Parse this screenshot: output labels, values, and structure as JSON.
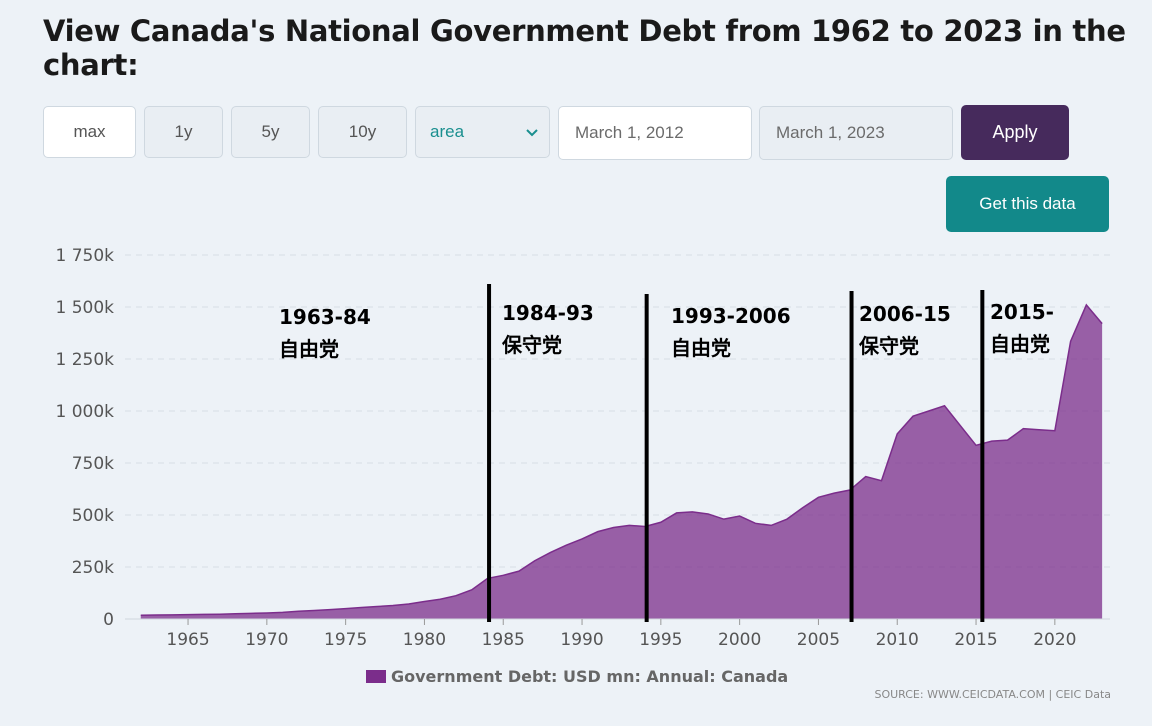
{
  "header": {
    "title": "View Canada's National Government Debt from 1962 to 2023 in the chart:"
  },
  "controls": {
    "range_buttons": [
      "max",
      "1y",
      "5y",
      "10y"
    ],
    "chart_type_select": "area",
    "start_date": "March 1, 2012",
    "end_date": "March 1, 2023",
    "apply_label": "Apply",
    "get_data_label": "Get this data"
  },
  "colors": {
    "series": "#7b2d8b",
    "apply": "#462a5c",
    "get_data": "#12898a"
  },
  "annotations": [
    {
      "line1": "1963-84",
      "line2": "自由党"
    },
    {
      "line1": "1984-93",
      "line2": "保守党"
    },
    {
      "line1": "1993-2006",
      "line2": "自由党"
    },
    {
      "line1": "2006-15",
      "line2": "保守党"
    },
    {
      "line1": "2015-",
      "line2": "自由党"
    }
  ],
  "divider_years": [
    1984.1,
    1994.1,
    2007.1,
    2015.4
  ],
  "legend": "Government Debt: USD mn: Annual: Canada",
  "source": "SOURCE: WWW.CEICDATA.COM | CEIC Data",
  "chart_data": {
    "type": "area",
    "xlabel": "",
    "ylabel": "",
    "ylim": [
      0,
      1750000
    ],
    "xlim": [
      1961,
      2023.5
    ],
    "yticks": [
      0,
      250000,
      500000,
      750000,
      1000000,
      1250000,
      1500000,
      1750000
    ],
    "ytick_labels": [
      "0",
      "250k",
      "500k",
      "750k",
      "1 000k",
      "1 250k",
      "1 500k",
      "1 750k"
    ],
    "xticks": [
      1965,
      1970,
      1975,
      1980,
      1985,
      1990,
      1995,
      2000,
      2005,
      2010,
      2015,
      2020
    ],
    "grid": true,
    "legend_position": "bottom",
    "series": [
      {
        "name": "Government Debt: USD mn: Annual: Canada",
        "x": [
          1962,
          1963,
          1964,
          1965,
          1966,
          1967,
          1968,
          1969,
          1970,
          1971,
          1972,
          1973,
          1974,
          1975,
          1976,
          1977,
          1978,
          1979,
          1980,
          1981,
          1982,
          1983,
          1984,
          1985,
          1986,
          1987,
          1988,
          1989,
          1990,
          1991,
          1992,
          1993,
          1994,
          1995,
          1996,
          1997,
          1998,
          1999,
          2000,
          2001,
          2002,
          2003,
          2004,
          2005,
          2006,
          2007,
          2008,
          2009,
          2010,
          2011,
          2012,
          2013,
          2014,
          2015,
          2016,
          2017,
          2018,
          2019,
          2020,
          2021,
          2022,
          2023
        ],
        "values": [
          18000,
          19000,
          20000,
          21000,
          22000,
          23000,
          25000,
          27000,
          29000,
          32000,
          37000,
          41000,
          45000,
          50000,
          55000,
          60000,
          65000,
          72000,
          84000,
          95000,
          112000,
          140000,
          195000,
          210000,
          230000,
          280000,
          320000,
          355000,
          385000,
          420000,
          440000,
          450000,
          445000,
          465000,
          510000,
          515000,
          505000,
          480000,
          495000,
          460000,
          450000,
          480000,
          535000,
          585000,
          605000,
          620000,
          685000,
          665000,
          890000,
          975000,
          1000000,
          1025000,
          930000,
          835000,
          855000,
          860000,
          915000,
          910000,
          905000,
          1335000,
          1510000,
          1420000
        ]
      }
    ]
  }
}
